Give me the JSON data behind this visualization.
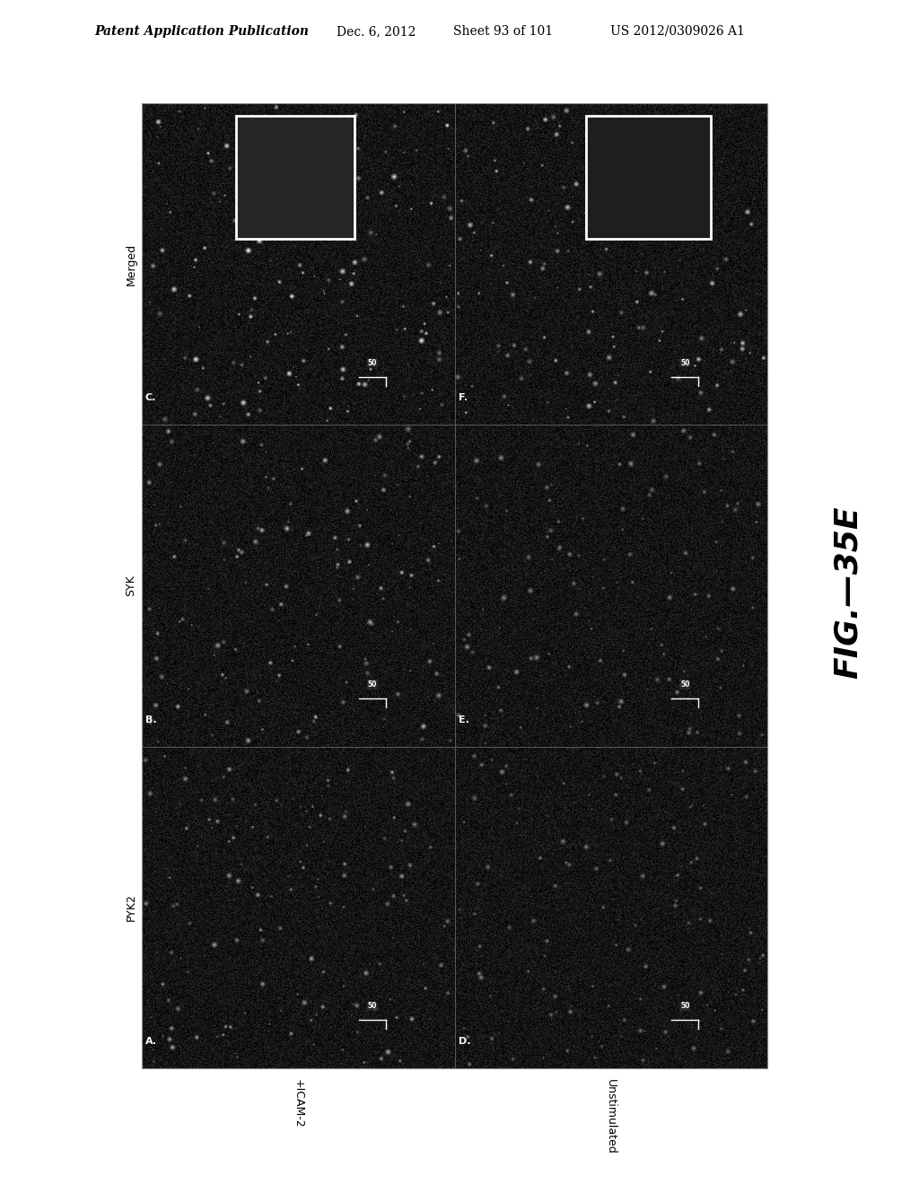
{
  "header_left": "Patent Application Publication",
  "header_mid": "Dec. 6, 2012",
  "header_sheet": "Sheet 93 of 101",
  "header_right": "US 2012/0309026 A1",
  "fig_label": "FIG.—35E",
  "y_labels": [
    "Merged",
    "SYK",
    "PYK2"
  ],
  "x_labels": [
    "+ICAM-2",
    "Unstimulated"
  ],
  "panel_labels": [
    "C.",
    "F.",
    "B.",
    "E.",
    "A.",
    "D."
  ],
  "scale_bar_text": "50",
  "background_color": "#ffffff",
  "image_bg": "#111111",
  "header_fontsize": 10,
  "fig_label_fontsize": 26,
  "panel_label_fontsize": 8,
  "y_label_fontsize": 9,
  "x_label_fontsize": 9
}
